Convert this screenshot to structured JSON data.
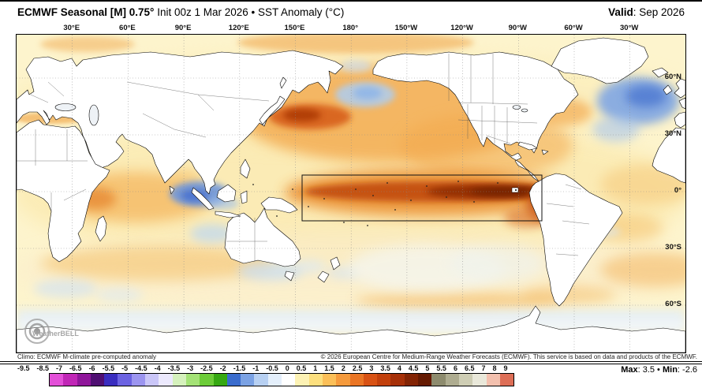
{
  "header": {
    "title_bold": "ECMWF Seasonal [M] 0.75°",
    "title_rest": " Init 00z 1 Mar 2026 • SST Anomaly (°C)",
    "valid_label": "Valid",
    "valid_value": ": Sep 2026"
  },
  "map": {
    "lon_labels": [
      "30°E",
      "60°E",
      "90°E",
      "120°E",
      "150°E",
      "180°",
      "150°W",
      "120°W",
      "90°W",
      "60°W",
      "30°W"
    ],
    "lat_labels": [
      "60°N",
      "30°N",
      "0°",
      "30°S",
      "60°S"
    ],
    "watermark": "WeatherBELL"
  },
  "footer": {
    "climo": "Climo: ECMWF M-climate pre-computed anomaly",
    "copyright": "© 2026 European Centre for Medium-Range Weather Forecasts (ECMWF). This service is based on data and products of the ECMWF.",
    "max_label": "Max",
    "max_value": ": 3.5",
    "separator": " • ",
    "min_label": "Min",
    "min_value": ": -2.6"
  },
  "colorbar": {
    "labels": [
      "-9.5",
      "-8.5",
      "-7",
      "-6.5",
      "-6",
      "-5.5",
      "-5",
      "-4.5",
      "-4",
      "-3.5",
      "-3",
      "-2.5",
      "-2",
      "-1.5",
      "-1",
      "-0.5",
      "0",
      "0.5",
      "1",
      "1.5",
      "2",
      "2.5",
      "3",
      "3.5",
      "4",
      "4.5",
      "5",
      "5.5",
      "6",
      "6.5",
      "7",
      "8",
      "9"
    ],
    "colors": [
      "#e34fd8",
      "#c026b6",
      "#8f169a",
      "#4f0f72",
      "#3a2dbf",
      "#6c63e2",
      "#9c95f0",
      "#cac6f8",
      "#ece9fd",
      "#d5f1bc",
      "#a4e276",
      "#6ccc38",
      "#36a812",
      "#3a6ccd",
      "#7ba2e4",
      "#b7d0f2",
      "#e4effb",
      "#ffffff",
      "#fdf2b4",
      "#fcdf7e",
      "#fbbf58",
      "#f59a3c",
      "#ea7524",
      "#d85214",
      "#c2400c",
      "#a63008",
      "#832404",
      "#651a02",
      "#8d8b6e",
      "#aeac90",
      "#cecdb4",
      "#e9e8da",
      "#f3c0ae",
      "#dd6e56"
    ]
  }
}
